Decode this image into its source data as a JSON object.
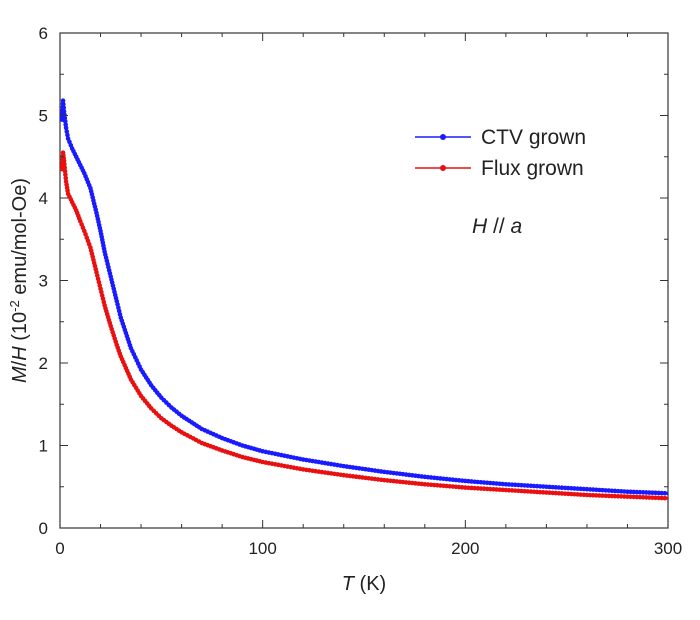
{
  "chart_data": {
    "type": "scatter",
    "title": "",
    "xlabel": {
      "var": "T",
      "unit": " (K)"
    },
    "ylabel": {
      "var1": "M",
      "slash": "/",
      "var2": "H",
      "prefix": " (10",
      "exp": "-2",
      "suffix": " emu/mol-Oe)"
    },
    "xlim": [
      0,
      300
    ],
    "ylim": [
      0,
      6
    ],
    "xticks": [
      0,
      100,
      200,
      300
    ],
    "yticks": [
      0,
      1,
      2,
      3,
      4,
      5,
      6
    ],
    "grid": false,
    "legend_position": "top-right",
    "annotation": {
      "h": "H",
      "sep": " // ",
      "a": "a"
    },
    "series": [
      {
        "name": "CTV grown",
        "color": "#1a1aff",
        "points": [
          [
            1,
            4.95
          ],
          [
            1.5,
            5.18
          ],
          [
            2,
            5.05
          ],
          [
            3,
            4.85
          ],
          [
            4,
            4.72
          ],
          [
            6,
            4.6
          ],
          [
            8,
            4.5
          ],
          [
            10,
            4.4
          ],
          [
            12,
            4.3
          ],
          [
            15,
            4.12
          ],
          [
            18,
            3.82
          ],
          [
            20,
            3.6
          ],
          [
            22,
            3.35
          ],
          [
            25,
            3.05
          ],
          [
            28,
            2.75
          ],
          [
            30,
            2.55
          ],
          [
            35,
            2.18
          ],
          [
            40,
            1.92
          ],
          [
            45,
            1.73
          ],
          [
            50,
            1.58
          ],
          [
            55,
            1.46
          ],
          [
            60,
            1.36
          ],
          [
            70,
            1.2
          ],
          [
            80,
            1.09
          ],
          [
            90,
            1.0
          ],
          [
            100,
            0.93
          ],
          [
            120,
            0.83
          ],
          [
            140,
            0.75
          ],
          [
            160,
            0.68
          ],
          [
            180,
            0.62
          ],
          [
            200,
            0.57
          ],
          [
            220,
            0.53
          ],
          [
            240,
            0.5
          ],
          [
            260,
            0.47
          ],
          [
            280,
            0.44
          ],
          [
            300,
            0.42
          ]
        ]
      },
      {
        "name": "Flux grown",
        "color": "#e81010",
        "points": [
          [
            1,
            4.35
          ],
          [
            1.5,
            4.55
          ],
          [
            2,
            4.45
          ],
          [
            3,
            4.2
          ],
          [
            4,
            4.05
          ],
          [
            6,
            3.95
          ],
          [
            8,
            3.85
          ],
          [
            10,
            3.72
          ],
          [
            12,
            3.6
          ],
          [
            15,
            3.4
          ],
          [
            18,
            3.1
          ],
          [
            20,
            2.9
          ],
          [
            22,
            2.7
          ],
          [
            25,
            2.45
          ],
          [
            28,
            2.22
          ],
          [
            30,
            2.08
          ],
          [
            35,
            1.8
          ],
          [
            40,
            1.6
          ],
          [
            45,
            1.45
          ],
          [
            50,
            1.33
          ],
          [
            55,
            1.24
          ],
          [
            60,
            1.16
          ],
          [
            70,
            1.03
          ],
          [
            80,
            0.94
          ],
          [
            90,
            0.86
          ],
          [
            100,
            0.8
          ],
          [
            120,
            0.71
          ],
          [
            140,
            0.64
          ],
          [
            160,
            0.58
          ],
          [
            180,
            0.53
          ],
          [
            200,
            0.49
          ],
          [
            220,
            0.46
          ],
          [
            240,
            0.43
          ],
          [
            260,
            0.4
          ],
          [
            280,
            0.38
          ],
          [
            300,
            0.36
          ]
        ]
      }
    ]
  }
}
